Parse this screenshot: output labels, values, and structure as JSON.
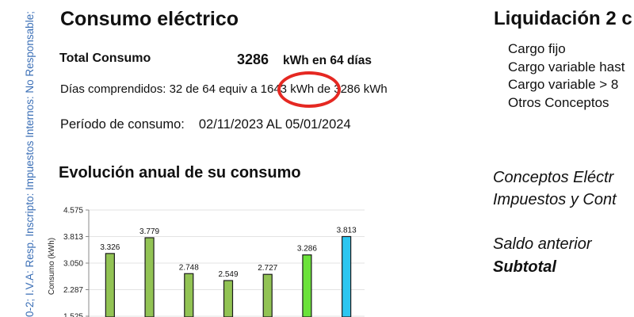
{
  "side_text": "0-2; I.V.A: Resp. Inscripto: Impuestos Internos: No Responsable;",
  "consumo": {
    "title": "Consumo eléctrico",
    "total_label": "Total Consumo",
    "total_value": "3286",
    "total_unit": "kWh en 64 días",
    "days_prefix": "Días comprendidos: 32 de 64  equiv a ",
    "days_highlight": "1643 kWh",
    "days_suffix": " de 3286 kWh",
    "period_label": "Período de consumo:",
    "period_value": "02/11/2023 AL 05/01/2024"
  },
  "chart_title": "Evolución anual de su consumo",
  "chart_data": {
    "type": "bar",
    "title": "Evolución anual de su consumo",
    "ylabel": "Consumo (kWh)",
    "xlabel": "",
    "ylim": [
      1525,
      4575
    ],
    "y_ticks": [
      "4.575",
      "3.813",
      "3.050",
      "2.287",
      "1.525"
    ],
    "values": [
      3326,
      3779,
      2748,
      2549,
      2727,
      3286,
      3813
    ],
    "value_labels": [
      "3.326",
      "3.779",
      "2.748",
      "2.549",
      "2.727",
      "3.286",
      "3.813"
    ],
    "colors": [
      "#92c354",
      "#92c354",
      "#92c354",
      "#92c354",
      "#92c354",
      "#6be23a",
      "#2cc6f0"
    ],
    "grid": true
  },
  "liquidacion": {
    "title": "Liquidación 2 c",
    "items": [
      "Cargo fijo",
      "Cargo variable hast",
      "Cargo variable > 8",
      "Otros Conceptos"
    ],
    "concepts": [
      "Conceptos Eléctr",
      "Impuestos y Cont"
    ],
    "saldo": "Saldo anterior",
    "subtotal": "Subtotal"
  },
  "colors": {
    "highlight": "#e52822",
    "side_text": "#3b6fb6"
  }
}
